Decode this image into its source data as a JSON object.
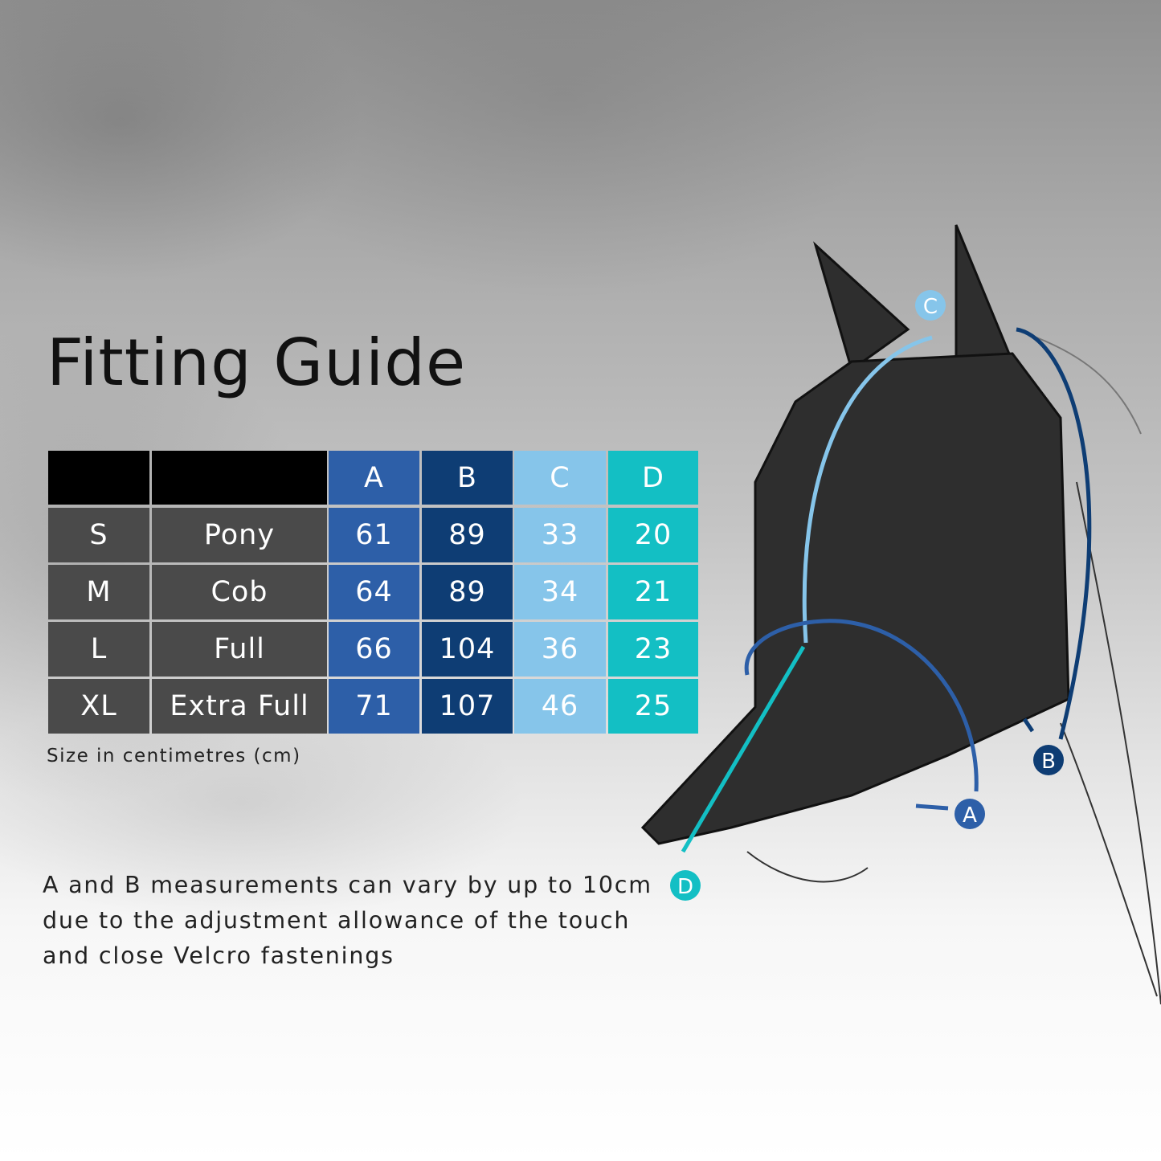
{
  "title": "Fitting Guide",
  "table": {
    "columns": [
      "A",
      "B",
      "C",
      "D"
    ],
    "column_colors": [
      "#2d5fa8",
      "#0e3d74",
      "#86c5ea",
      "#13bfc4"
    ],
    "rows": [
      {
        "size": "S",
        "name": "Pony",
        "values": [
          "61",
          "89",
          "33",
          "20"
        ]
      },
      {
        "size": "M",
        "name": "Cob",
        "values": [
          "64",
          "89",
          "34",
          "21"
        ]
      },
      {
        "size": "L",
        "name": "Full",
        "values": [
          "66",
          "104",
          "36",
          "23"
        ]
      },
      {
        "size": "XL",
        "name": "Extra Full",
        "values": [
          "71",
          "107",
          "46",
          "25"
        ]
      }
    ]
  },
  "unit_note": "Size in centimetres (cm)",
  "note": "A and B measurements can vary by up to 10cm due to the adjustment allowance of the touch and close Velcro fastenings",
  "diagram_labels": {
    "a": "A",
    "b": "B",
    "c": "C",
    "d": "D"
  }
}
